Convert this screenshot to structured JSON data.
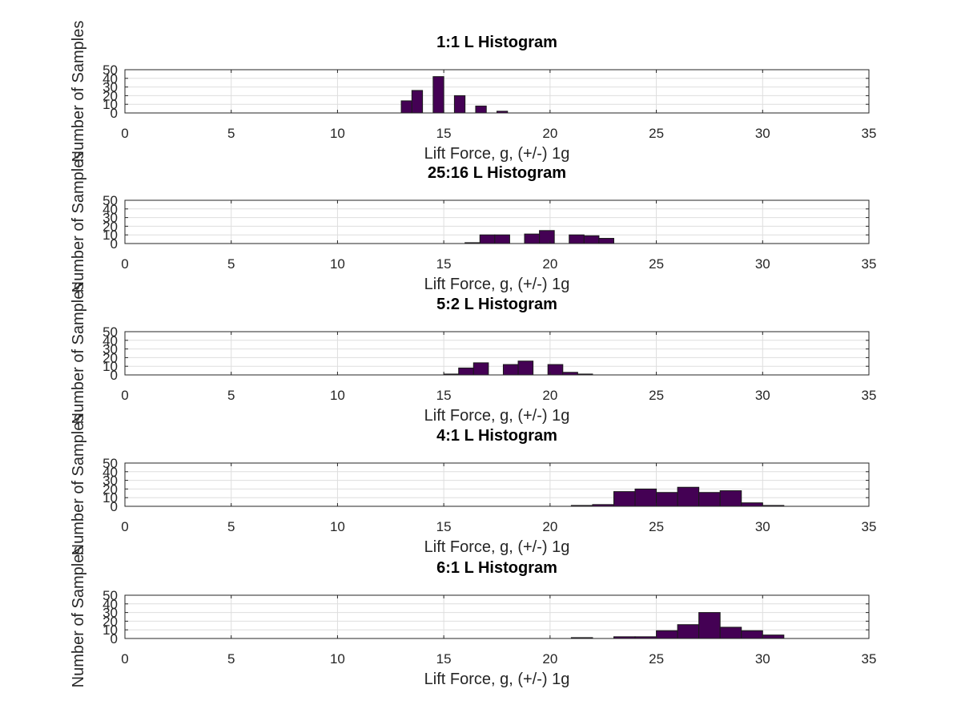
{
  "chart_data": [
    {
      "type": "bar",
      "title": "1:1 L Histogram",
      "xlabel": "Lift Force, g, (+/-) 1g",
      "ylabel": "Number of Samples",
      "xlim": [
        0,
        35
      ],
      "ylim": [
        0,
        50
      ],
      "xticks": [
        0,
        5,
        10,
        15,
        20,
        25,
        30,
        35
      ],
      "yticks": [
        0,
        10,
        20,
        30,
        40,
        50
      ],
      "grid": true,
      "bin_width": 0.5,
      "bins": [
        {
          "x0": 13.0,
          "x1": 13.5,
          "count": 14
        },
        {
          "x0": 13.5,
          "x1": 14.0,
          "count": 26
        },
        {
          "x0": 14.5,
          "x1": 15.0,
          "count": 42
        },
        {
          "x0": 15.5,
          "x1": 16.0,
          "count": 20
        },
        {
          "x0": 16.5,
          "x1": 17.0,
          "count": 8
        },
        {
          "x0": 17.5,
          "x1": 18.0,
          "count": 2
        }
      ]
    },
    {
      "type": "bar",
      "title": "25:16 L Histogram",
      "xlabel": "Lift Force, g, (+/-) 1g",
      "ylabel": "Number of Samples",
      "xlim": [
        0,
        35
      ],
      "ylim": [
        0,
        50
      ],
      "xticks": [
        0,
        5,
        10,
        15,
        20,
        25,
        30,
        35
      ],
      "yticks": [
        0,
        10,
        20,
        30,
        40,
        50
      ],
      "grid": true,
      "bin_width": 0.7,
      "bins": [
        {
          "x0": 16.0,
          "x1": 16.7,
          "count": 1
        },
        {
          "x0": 16.7,
          "x1": 17.4,
          "count": 10
        },
        {
          "x0": 17.4,
          "x1": 18.1,
          "count": 10
        },
        {
          "x0": 18.8,
          "x1": 19.5,
          "count": 11
        },
        {
          "x0": 19.5,
          "x1": 20.2,
          "count": 15
        },
        {
          "x0": 20.9,
          "x1": 21.6,
          "count": 10
        },
        {
          "x0": 21.6,
          "x1": 22.3,
          "count": 9
        },
        {
          "x0": 22.3,
          "x1": 23.0,
          "count": 6
        }
      ]
    },
    {
      "type": "bar",
      "title": "5:2 L Histogram",
      "xlabel": "Lift Force, g, (+/-) 1g",
      "ylabel": "Number of Samples",
      "xlim": [
        0,
        35
      ],
      "ylim": [
        0,
        50
      ],
      "xticks": [
        0,
        5,
        10,
        15,
        20,
        25,
        30,
        35
      ],
      "yticks": [
        0,
        10,
        20,
        30,
        40,
        50
      ],
      "grid": true,
      "bin_width": 0.7,
      "bins": [
        {
          "x0": 15.0,
          "x1": 15.7,
          "count": 1
        },
        {
          "x0": 15.7,
          "x1": 16.4,
          "count": 8
        },
        {
          "x0": 16.4,
          "x1": 17.1,
          "count": 14
        },
        {
          "x0": 17.8,
          "x1": 18.5,
          "count": 12
        },
        {
          "x0": 18.5,
          "x1": 19.2,
          "count": 16
        },
        {
          "x0": 19.9,
          "x1": 20.6,
          "count": 12
        },
        {
          "x0": 20.6,
          "x1": 21.3,
          "count": 3
        },
        {
          "x0": 21.3,
          "x1": 22.0,
          "count": 1
        }
      ]
    },
    {
      "type": "bar",
      "title": "4:1 L Histogram",
      "xlabel": "Lift Force, g, (+/-) 1g",
      "ylabel": "Number of Samples",
      "xlim": [
        0,
        35
      ],
      "ylim": [
        0,
        50
      ],
      "xticks": [
        0,
        5,
        10,
        15,
        20,
        25,
        30,
        35
      ],
      "yticks": [
        0,
        10,
        20,
        30,
        40,
        50
      ],
      "grid": true,
      "bin_width": 1.0,
      "bins": [
        {
          "x0": 21.0,
          "x1": 22.0,
          "count": 1
        },
        {
          "x0": 22.0,
          "x1": 23.0,
          "count": 2
        },
        {
          "x0": 23.0,
          "x1": 24.0,
          "count": 17
        },
        {
          "x0": 24.0,
          "x1": 25.0,
          "count": 20
        },
        {
          "x0": 25.0,
          "x1": 26.0,
          "count": 16
        },
        {
          "x0": 26.0,
          "x1": 27.0,
          "count": 22
        },
        {
          "x0": 27.0,
          "x1": 28.0,
          "count": 16
        },
        {
          "x0": 28.0,
          "x1": 29.0,
          "count": 18
        },
        {
          "x0": 29.0,
          "x1": 30.0,
          "count": 4
        },
        {
          "x0": 30.0,
          "x1": 31.0,
          "count": 1
        }
      ]
    },
    {
      "type": "bar",
      "title": "6:1 L Histogram",
      "xlabel": "Lift Force, g, (+/-) 1g",
      "ylabel": "Number of Samples",
      "xlim": [
        0,
        35
      ],
      "ylim": [
        0,
        50
      ],
      "xticks": [
        0,
        5,
        10,
        15,
        20,
        25,
        30,
        35
      ],
      "yticks": [
        0,
        10,
        20,
        30,
        40,
        50
      ],
      "grid": true,
      "bin_width": 1.0,
      "bins": [
        {
          "x0": 21.0,
          "x1": 22.0,
          "count": 1
        },
        {
          "x0": 23.0,
          "x1": 24.0,
          "count": 2
        },
        {
          "x0": 24.0,
          "x1": 25.0,
          "count": 2
        },
        {
          "x0": 25.0,
          "x1": 26.0,
          "count": 9
        },
        {
          "x0": 26.0,
          "x1": 27.0,
          "count": 16
        },
        {
          "x0": 27.0,
          "x1": 28.0,
          "count": 30
        },
        {
          "x0": 28.0,
          "x1": 29.0,
          "count": 13
        },
        {
          "x0": 29.0,
          "x1": 30.0,
          "count": 9
        },
        {
          "x0": 30.0,
          "x1": 31.0,
          "count": 4
        }
      ]
    }
  ],
  "colors": {
    "bar_fill": "#440154",
    "bar_edge": "#1a1a1a",
    "grid": "#dedede",
    "axis": "#262626"
  }
}
